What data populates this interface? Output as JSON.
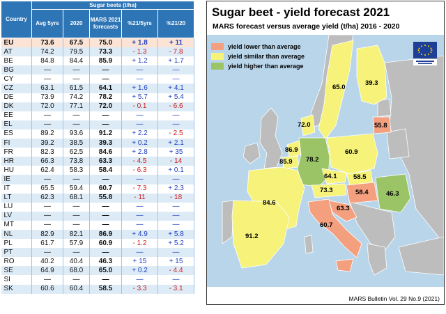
{
  "table": {
    "header_group": "Sugar beets (t/ha)",
    "col_country": "Country",
    "col_avg": "Avg 5yrs",
    "col_2020": "2020",
    "col_mars": "MARS 2021 forecasts",
    "col_p5": "%21/5yrs",
    "col_p20": "%21/20",
    "rows": [
      {
        "c": "EU",
        "a": "73.6",
        "b": "67.5",
        "f": "75.0",
        "p": "+ 1.8",
        "q": "+ 11"
      },
      {
        "c": "AT",
        "a": "74.2",
        "b": "79.5",
        "f": "73.3",
        "p": "- 1.3",
        "q": "- 7.8"
      },
      {
        "c": "BE",
        "a": "84.8",
        "b": "84.4",
        "f": "85.9",
        "p": "+ 1.2",
        "q": "+ 1.7"
      },
      {
        "c": "BG",
        "a": "—",
        "b": "—",
        "f": "—",
        "p": "—",
        "q": "—"
      },
      {
        "c": "CY",
        "a": "—",
        "b": "—",
        "f": "—",
        "p": "—",
        "q": "—"
      },
      {
        "c": "CZ",
        "a": "63.1",
        "b": "61.5",
        "f": "64.1",
        "p": "+ 1.6",
        "q": "+ 4.1"
      },
      {
        "c": "DE",
        "a": "73.9",
        "b": "74.2",
        "f": "78.2",
        "p": "+ 5.7",
        "q": "+ 5.4"
      },
      {
        "c": "DK",
        "a": "72.0",
        "b": "77.1",
        "f": "72.0",
        "p": "- 0.1",
        "q": "- 6.6"
      },
      {
        "c": "EE",
        "a": "—",
        "b": "—",
        "f": "—",
        "p": "—",
        "q": "—"
      },
      {
        "c": "EL",
        "a": "—",
        "b": "—",
        "f": "—",
        "p": "—",
        "q": "—"
      },
      {
        "c": "ES",
        "a": "89.2",
        "b": "93.6",
        "f": "91.2",
        "p": "+ 2.2",
        "q": "- 2.5"
      },
      {
        "c": "FI",
        "a": "39.2",
        "b": "38.5",
        "f": "39.3",
        "p": "+ 0.2",
        "q": "+ 2.1"
      },
      {
        "c": "FR",
        "a": "82.3",
        "b": "62.5",
        "f": "84.6",
        "p": "+ 2.8",
        "q": "+ 35"
      },
      {
        "c": "HR",
        "a": "66.3",
        "b": "73.8",
        "f": "63.3",
        "p": "- 4.5",
        "q": "- 14"
      },
      {
        "c": "HU",
        "a": "62.4",
        "b": "58.3",
        "f": "58.4",
        "p": "- 6.3",
        "q": "+ 0.1"
      },
      {
        "c": "IE",
        "a": "—",
        "b": "—",
        "f": "—",
        "p": "—",
        "q": "—"
      },
      {
        "c": "IT",
        "a": "65.5",
        "b": "59.4",
        "f": "60.7",
        "p": "- 7.3",
        "q": "+ 2.3"
      },
      {
        "c": "LT",
        "a": "62.3",
        "b": "68.1",
        "f": "55.8",
        "p": "- 11",
        "q": "- 18"
      },
      {
        "c": "LU",
        "a": "—",
        "b": "—",
        "f": "—",
        "p": "—",
        "q": "—"
      },
      {
        "c": "LV",
        "a": "—",
        "b": "—",
        "f": "—",
        "p": "—",
        "q": "—"
      },
      {
        "c": "MT",
        "a": "—",
        "b": "—",
        "f": "—",
        "p": "—",
        "q": "—"
      },
      {
        "c": "NL",
        "a": "82.9",
        "b": "82.1",
        "f": "86.9",
        "p": "+ 4.9",
        "q": "+ 5.8"
      },
      {
        "c": "PL",
        "a": "61.7",
        "b": "57.9",
        "f": "60.9",
        "p": "- 1.2",
        "q": "+ 5.2"
      },
      {
        "c": "PT",
        "a": "—",
        "b": "—",
        "f": "—",
        "p": "—",
        "q": "—"
      },
      {
        "c": "RO",
        "a": "40.2",
        "b": "40.4",
        "f": "46.3",
        "p": "+ 15",
        "q": "+ 15"
      },
      {
        "c": "SE",
        "a": "64.9",
        "b": "68.0",
        "f": "65.0",
        "p": "+ 0.2",
        "q": "- 4.4"
      },
      {
        "c": "SI",
        "a": "—",
        "b": "—",
        "f": "—",
        "p": "—",
        "q": "—"
      },
      {
        "c": "SK",
        "a": "60.6",
        "b": "60.4",
        "f": "58.5",
        "p": "- 3.3",
        "q": "- 3.1"
      }
    ]
  },
  "map": {
    "title": "Sugar beet - yield forecast 2021",
    "subtitle": "MARS forecast versus average yield (t/ha) 2016 - 2020",
    "legend": [
      {
        "label": "yield lower than average",
        "color": "#f4a07f"
      },
      {
        "label": "yield similar than average",
        "color": "#f6f27a"
      },
      {
        "label": "yield higher than average",
        "color": "#9bc466"
      }
    ],
    "credit": "MARS Bulletin Vol. 29 No.9 (2021)",
    "colors": {
      "sea": "#b9d5ea",
      "nodata": "#bdbdbd",
      "lower": "#f4a07f",
      "similar": "#f6f27a",
      "higher": "#9bc466"
    },
    "labels": {
      "SE": "65.0",
      "FI": "39.3",
      "DK": "72.0",
      "LT": "55.8",
      "NL": "86.9",
      "BE": "85.9",
      "DE": "78.2",
      "PL": "60.9",
      "CZ": "64.1",
      "SK": "58.5",
      "AT": "73.3",
      "HU": "58.4",
      "RO": "46.3",
      "FR": "84.6",
      "HR": "63.3",
      "IT": "60.7",
      "ES": "91.2"
    }
  }
}
